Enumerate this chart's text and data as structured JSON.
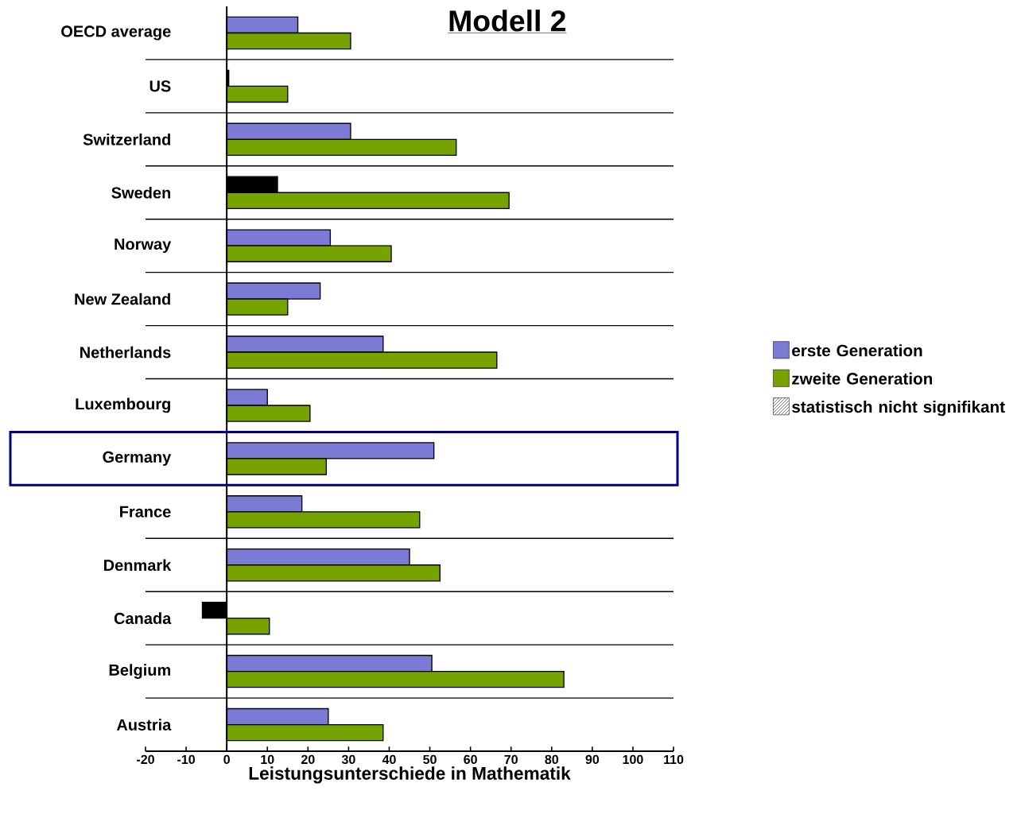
{
  "chart_data": {
    "type": "bar",
    "orientation": "horizontal",
    "title": "**Modell 2**",
    "xlabel": "Leistungsunterschiede in Mathematik",
    "categories": [
      "OECD average",
      "US",
      "Switzerland",
      "Sweden",
      "Norway",
      "New Zealand",
      "Netherlands",
      "Luxembourg",
      "Germany",
      "France",
      "Denmark",
      "Canada",
      "Belgium",
      "Austria"
    ],
    "series": [
      {
        "name": "erste Generation",
        "color": "#7b7bd6",
        "values": [
          17.5,
          0.5,
          30.5,
          12.5,
          25.5,
          23,
          38.5,
          10,
          51,
          18.5,
          45,
          -6,
          50.5,
          25
        ],
        "colors": [
          "#7b7bd6",
          "#000000",
          "#7b7bd6",
          "#000000",
          "#7b7bd6",
          "#7b7bd6",
          "#7b7bd6",
          "#7b7bd6",
          "#7b7bd6",
          "#7b7bd6",
          "#7b7bd6",
          "#000000",
          "#7b7bd6",
          "#7b7bd6"
        ]
      },
      {
        "name": "zweite Generation",
        "color": "#76a300",
        "values": [
          30.5,
          15,
          56.5,
          69.5,
          40.5,
          15,
          66.5,
          20.5,
          24.5,
          47.5,
          52.5,
          10.5,
          83,
          38.5
        ]
      },
      {
        "name": "statistisch nicht signifikant",
        "color": "#000080",
        "values": [
          null,
          null,
          null,
          null,
          null,
          null,
          null,
          null,
          null,
          null,
          null,
          null,
          null,
          null
        ]
      }
    ],
    "xlim": [
      -20,
      110
    ],
    "xticks": [
      -20,
      -10,
      0,
      10,
      20,
      30,
      40,
      50,
      60,
      70,
      80,
      90,
      100,
      110
    ],
    "grid": "y",
    "legend": "right"
  }
}
